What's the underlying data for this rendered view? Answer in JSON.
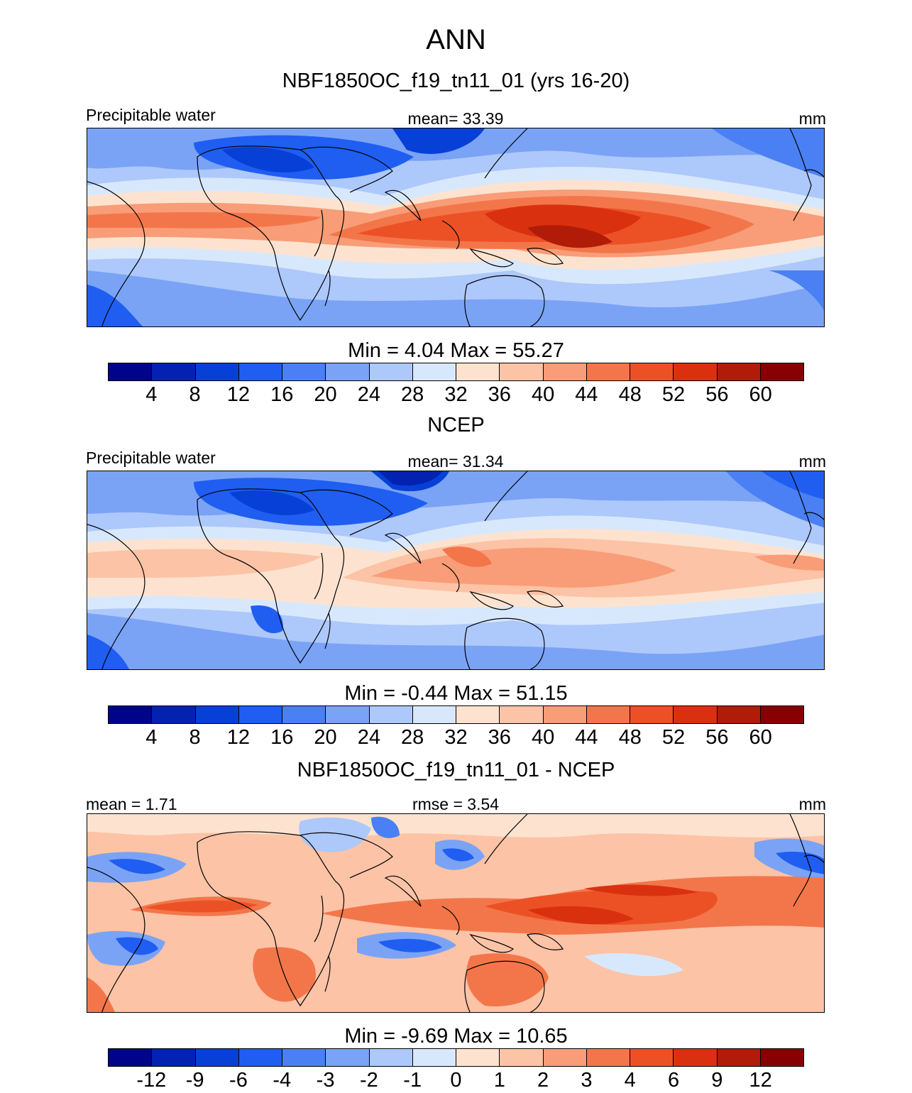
{
  "figure": {
    "title": "ANN"
  },
  "panels": [
    {
      "id": "model",
      "title": "NBF1850OC_f19_tn11_01 (yrs 16-20)",
      "left_label": "Precipitable water",
      "center_label": "mean=  33.39",
      "units": "mm",
      "minmax": "Min =   4.04 Max =  55.27",
      "colorbar": {
        "colors": [
          "#00048a",
          "#0322b2",
          "#0740d6",
          "#1f5ef0",
          "#4a80f3",
          "#7aa3f6",
          "#adc8fa",
          "#d8e8fc",
          "#fde3cf",
          "#fcc3a6",
          "#f89d77",
          "#f3764a",
          "#ec5126",
          "#d9310f",
          "#b01c08",
          "#870004"
        ],
        "tick_labels": [
          "4",
          "8",
          "12",
          "16",
          "20",
          "24",
          "28",
          "32",
          "36",
          "40",
          "44",
          "48",
          "52",
          "56",
          "60"
        ]
      }
    },
    {
      "id": "obs",
      "title": "NCEP",
      "left_label": "Precipitable water",
      "center_label": "mean=  31.34",
      "units": "mm",
      "minmax": "Min =  -0.44 Max =  51.15",
      "colorbar": {
        "colors": [
          "#00048a",
          "#0322b2",
          "#0740d6",
          "#1f5ef0",
          "#4a80f3",
          "#7aa3f6",
          "#adc8fa",
          "#d8e8fc",
          "#fde3cf",
          "#fcc3a6",
          "#f89d77",
          "#f3764a",
          "#ec5126",
          "#d9310f",
          "#b01c08",
          "#870004"
        ],
        "tick_labels": [
          "4",
          "8",
          "12",
          "16",
          "20",
          "24",
          "28",
          "32",
          "36",
          "40",
          "44",
          "48",
          "52",
          "56",
          "60"
        ]
      }
    },
    {
      "id": "diff",
      "title": "NBF1850OC_f19_tn11_01 - NCEP",
      "left_label": "mean =   1.71",
      "center_label": "rmse =   3.54",
      "units": "mm",
      "minmax": "Min =  -9.69 Max =  10.65",
      "colorbar": {
        "colors": [
          "#00048a",
          "#0322b2",
          "#0740d6",
          "#1f5ef0",
          "#4a80f3",
          "#7aa3f6",
          "#adc8fa",
          "#d8e8fc",
          "#fde3cf",
          "#fcc3a6",
          "#f89d77",
          "#f3764a",
          "#ec5126",
          "#d9310f",
          "#b01c08",
          "#870004"
        ],
        "tick_labels": [
          "-12",
          "-9",
          "-6",
          "-4",
          "-3",
          "-2",
          "-1",
          "0",
          "1",
          "2",
          "3",
          "4",
          "6",
          "9",
          "12"
        ]
      }
    }
  ]
}
